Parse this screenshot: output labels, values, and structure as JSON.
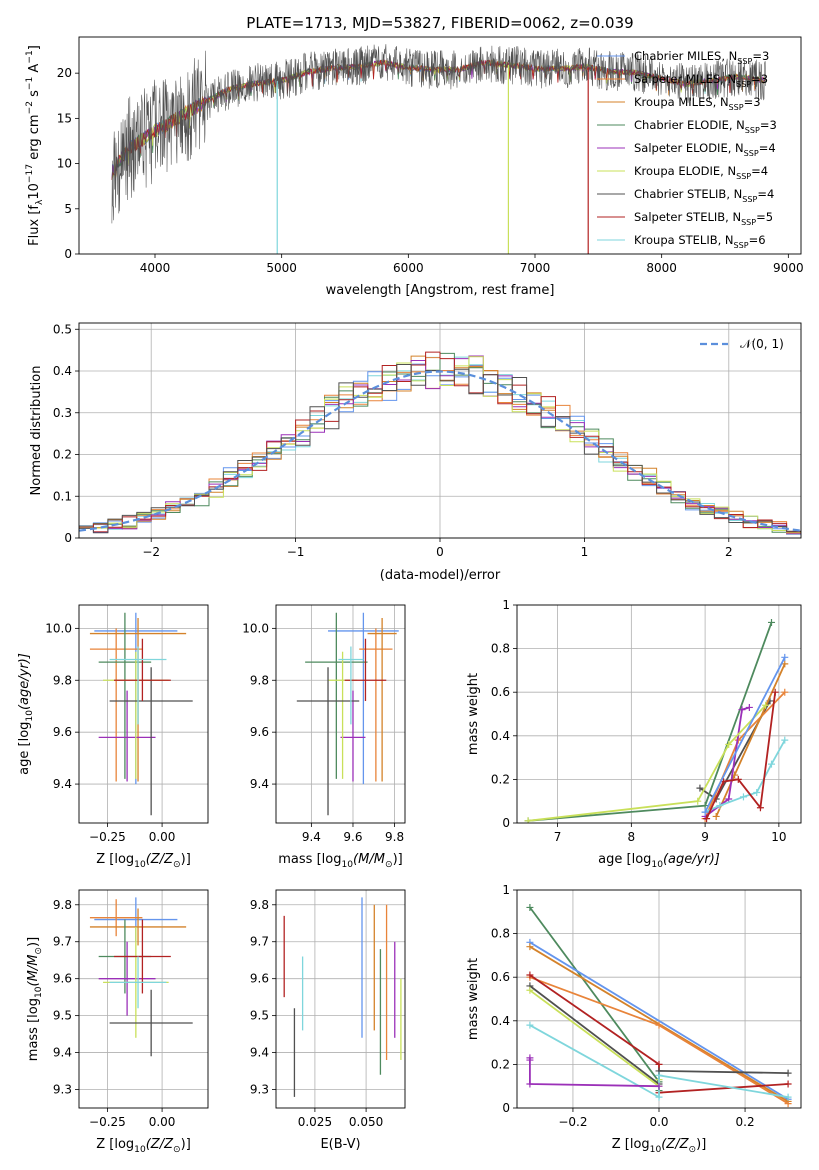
{
  "figure_title": "PLATE=1713, MJD=53827, FIBERID=0062, z=0.039",
  "colors": {
    "cm": "#6495ed",
    "sm": "#e8843a",
    "km": "#d4822a",
    "ce": "#4e8a5e",
    "se": "#9b30b8",
    "ke": "#c9e05a",
    "cs": "#505050",
    "ss": "#b22222",
    "ks": "#7fd6dc"
  },
  "legend": {
    "spectrum": [
      {
        "key": "cm",
        "label": "Chabrier MILES, N",
        "sub": "SSP",
        "tail": "=3"
      },
      {
        "key": "sm",
        "label": "Salpeter MILES, N",
        "sub": "SSP",
        "tail": "=3"
      },
      {
        "key": "km",
        "label": "Kroupa MILES, N",
        "sub": "SSP",
        "tail": "=3"
      },
      {
        "key": "ce",
        "label": "Chabrier ELODIE, N",
        "sub": "SSP",
        "tail": "=3"
      },
      {
        "key": "se",
        "label": "Salpeter ELODIE, N",
        "sub": "SSP",
        "tail": "=4"
      },
      {
        "key": "ke",
        "label": "Kroupa ELODIE, N",
        "sub": "SSP",
        "tail": "=4"
      },
      {
        "key": "cs",
        "label": "Chabrier STELIB, N",
        "sub": "SSP",
        "tail": "=4"
      },
      {
        "key": "ss",
        "label": "Salpeter STELIB, N",
        "sub": "SSP",
        "tail": "=5"
      },
      {
        "key": "ks",
        "label": "Kroupa STELIB, N",
        "sub": "SSP",
        "tail": "=6"
      }
    ],
    "normal": "𝒩(0, 1)"
  },
  "chart_data": [
    {
      "id": "spectrum",
      "type": "line",
      "xlabel": "wavelength [Angstrom, rest frame]",
      "ylabel_main": "Flux [f",
      "ylabel_sub": "λ",
      "ylabel_rest": "10",
      "ylabel_exp": "−17",
      "ylabel_units": " erg cm",
      "ylabel_units_exp": "−2",
      "ylabel_s": " s",
      "ylabel_s_exp": "−1",
      "ylabel_A": " A",
      "ylabel_A_exp": "−1",
      "ylabel_end": "]",
      "xlim": [
        3400,
        9100
      ],
      "ylim": [
        0,
        24
      ],
      "xticks": [
        4000,
        5000,
        6000,
        7000,
        8000,
        9000
      ],
      "yticks": [
        0,
        5,
        10,
        15,
        20
      ],
      "series": [
        {
          "key": "cs",
          "x": [
            3660,
            3800,
            4000,
            4200,
            4400,
            4600,
            4800,
            5000,
            5200,
            5400,
            5600,
            5800,
            6000,
            6200,
            6400,
            6600,
            6800,
            7000,
            7200,
            7400,
            7600,
            7800,
            8000,
            8200,
            8400,
            8600,
            8820
          ],
          "y": [
            9.0,
            11.8,
            13.6,
            15.2,
            16.9,
            18.3,
            18.9,
            19.2,
            20.1,
            20.6,
            20.7,
            21.2,
            20.6,
            20.4,
            20.4,
            21.2,
            20.9,
            20.5,
            20.5,
            20.7,
            20.2,
            20.1,
            19.4,
            18.8,
            19.2,
            19.6,
            19.2
          ]
        }
      ],
      "dropouts": [
        {
          "key": "ks",
          "x": 4965,
          "to": 0
        },
        {
          "key": "ke",
          "x": 6790,
          "to": 0
        },
        {
          "key": "ss",
          "x": 7420,
          "to": 0
        }
      ]
    },
    {
      "id": "residuals",
      "type": "step-histogram",
      "xlabel": "(data-model)/error",
      "ylabel": "Normed distribution",
      "xlim": [
        -2.5,
        2.5
      ],
      "ylim": [
        0,
        0.515
      ],
      "xticks": [
        -2,
        -1,
        0,
        1,
        2
      ],
      "xticklabels": [
        "−2",
        "−1",
        "0",
        "1",
        "2"
      ],
      "yticks": [
        0.0,
        0.1,
        0.2,
        0.3,
        0.4,
        0.5
      ],
      "bin_edges_start": -2.5,
      "bin_width": 0.1,
      "reference": {
        "type": "gaussian",
        "mean": 0,
        "sigma": 1
      }
    },
    {
      "id": "age_vs_Z",
      "type": "errorbar",
      "xlabel": "Z [log",
      "xlabel_sub": "10",
      "xlabel_tail": "(Z/Z",
      "xlabel_sun": "⊙",
      "xlabel_end": ")]",
      "ylabel": "age  [log",
      "ylabel_sub": "10",
      "ylabel_tail": "(age/yr)]",
      "xlim": [
        -0.38,
        0.21
      ],
      "ylim": [
        9.25,
        10.09
      ],
      "xticks": [
        -0.25,
        0.0
      ],
      "xticklabels": [
        "−0.25",
        "0.00"
      ],
      "yticks": [
        9.4,
        9.6,
        9.8,
        10.0
      ],
      "yticklabels": [
        "9.4",
        "9.6",
        "9.8",
        "10.0"
      ],
      "points": [
        {
          "key": "cm",
          "x": -0.12,
          "xerr": 0.19,
          "y": 9.99,
          "yerr_lo": 0.59,
          "yerr_hi": 0.07
        },
        {
          "key": "sm",
          "x": -0.21,
          "xerr": 0.12,
          "y": 9.92,
          "yerr_lo": 0.51,
          "yerr_hi": 0.08
        },
        {
          "key": "km",
          "x": -0.11,
          "xerr": 0.22,
          "y": 9.98,
          "yerr_lo": 0.57,
          "yerr_hi": 0.06
        },
        {
          "key": "ce",
          "x": -0.17,
          "xerr": 0.12,
          "y": 9.87,
          "yerr_lo": 0.45,
          "yerr_hi": 0.19
        },
        {
          "key": "se",
          "x": -0.16,
          "xerr": 0.13,
          "y": 9.58,
          "yerr_lo": 0.17,
          "yerr_hi": 0.18
        },
        {
          "key": "ke",
          "x": -0.12,
          "xerr": 0.15,
          "y": 9.8,
          "yerr_lo": 0.38,
          "yerr_hi": 0.11
        },
        {
          "key": "cs",
          "x": -0.05,
          "xerr": 0.19,
          "y": 9.72,
          "yerr_lo": 0.44,
          "yerr_hi": 0.13
        },
        {
          "key": "ss",
          "x": -0.09,
          "xerr": 0.13,
          "y": 9.8,
          "yerr_lo": 0.08,
          "yerr_hi": 0.16
        },
        {
          "key": "ks",
          "x": -0.11,
          "xerr": 0.13,
          "y": 9.88,
          "yerr_lo": 0.25,
          "yerr_hi": 0.05
        }
      ]
    },
    {
      "id": "age_vs_mass",
      "type": "errorbar",
      "xlabel": "mass [log",
      "xlabel_sub": "10",
      "xlabel_tail": "(M/M",
      "xlabel_sun": "⊙",
      "xlabel_end": ")]",
      "xlim": [
        9.23,
        9.85
      ],
      "ylim": [
        9.25,
        10.09
      ],
      "xticks": [
        9.4,
        9.6,
        9.8
      ],
      "xticklabels": [
        "9.4",
        "9.6",
        "9.8"
      ],
      "yticks": [
        9.4,
        9.6,
        9.8,
        10.0
      ],
      "yticklabels": [
        "9.4",
        "9.6",
        "9.8",
        "10.0"
      ],
      "points": [
        {
          "key": "cm",
          "x": 9.65,
          "xerr": 0.17,
          "y": 9.99,
          "yerr_lo": 0.59,
          "yerr_hi": 0.07
        },
        {
          "key": "sm",
          "x": 9.71,
          "xerr": 0.08,
          "y": 9.92,
          "yerr_lo": 0.51,
          "yerr_hi": 0.08
        },
        {
          "key": "km",
          "x": 9.74,
          "xerr": 0.07,
          "y": 9.98,
          "yerr_lo": 0.57,
          "yerr_hi": 0.06
        },
        {
          "key": "ce",
          "x": 9.52,
          "xerr": 0.15,
          "y": 9.87,
          "yerr_lo": 0.45,
          "yerr_hi": 0.19
        },
        {
          "key": "se",
          "x": 9.6,
          "xerr": 0.06,
          "y": 9.58,
          "yerr_lo": 0.17,
          "yerr_hi": 0.18
        },
        {
          "key": "ke",
          "x": 9.55,
          "xerr": 0.07,
          "y": 9.8,
          "yerr_lo": 0.38,
          "yerr_hi": 0.11
        },
        {
          "key": "cs",
          "x": 9.48,
          "xerr": 0.15,
          "y": 9.72,
          "yerr_lo": 0.44,
          "yerr_hi": 0.13
        },
        {
          "key": "ss",
          "x": 9.66,
          "xerr": 0.1,
          "y": 9.8,
          "yerr_lo": 0.08,
          "yerr_hi": 0.16
        },
        {
          "key": "ks",
          "x": 9.59,
          "xerr": 0.06,
          "y": 9.88,
          "yerr_lo": 0.25,
          "yerr_hi": 0.05
        }
      ]
    },
    {
      "id": "weight_vs_age",
      "type": "line",
      "xlabel": "age  [log",
      "xlabel_sub": "10",
      "xlabel_tail": "(age/yr)]",
      "ylabel": "mass weight",
      "xlim": [
        6.45,
        10.3
      ],
      "ylim": [
        0,
        1
      ],
      "xticks": [
        7,
        8,
        9,
        10
      ],
      "yticks": [
        0.0,
        0.2,
        0.4,
        0.6,
        0.8,
        1.0
      ],
      "series": [
        {
          "key": "cs",
          "x": [
            8.93,
            9.15,
            9.88
          ],
          "y": [
            0.16,
            0.11,
            0.56
          ]
        },
        {
          "key": "sm",
          "x": [
            9.0,
            9.45,
            10.08
          ],
          "y": [
            0.02,
            0.38,
            0.6
          ]
        },
        {
          "key": "km",
          "x": [
            9.15,
            9.4,
            10.08
          ],
          "y": [
            0.03,
            0.22,
            0.73
          ]
        },
        {
          "key": "ce",
          "x": [
            6.6,
            9.0,
            9.9
          ],
          "y": [
            0.01,
            0.08,
            0.92
          ]
        },
        {
          "key": "se",
          "x": [
            9.0,
            9.32,
            9.5,
            9.6
          ],
          "y": [
            0.03,
            0.11,
            0.52,
            0.53
          ]
        },
        {
          "key": "ke",
          "x": [
            6.6,
            8.9,
            9.32,
            9.82
          ],
          "y": [
            0.01,
            0.1,
            0.36,
            0.54
          ]
        },
        {
          "key": "ks",
          "x": [
            9.0,
            9.2,
            9.52,
            9.7,
            9.9,
            10.08
          ],
          "y": [
            0.05,
            0.08,
            0.12,
            0.14,
            0.27,
            0.38
          ]
        },
        {
          "key": "ss",
          "x": [
            9.02,
            9.25,
            9.45,
            9.75,
            9.95
          ],
          "y": [
            0.02,
            0.19,
            0.2,
            0.07,
            0.6
          ]
        },
        {
          "key": "cm",
          "x": [
            9.0,
            10.08
          ],
          "y": [
            0.05,
            0.76
          ]
        }
      ]
    },
    {
      "id": "mass_vs_Z",
      "type": "errorbar",
      "xlabel": "Z [log",
      "xlabel_sub": "10",
      "xlabel_tail": "(Z/Z",
      "xlabel_sun": "⊙",
      "xlabel_end": ")]",
      "ylabel": "mass [log",
      "ylabel_sub": "10",
      "ylabel_tail": "(M/M",
      "ylabel_sun": "⊙",
      "ylabel_end": ")]",
      "xlim": [
        -0.38,
        0.21
      ],
      "ylim": [
        9.25,
        9.84
      ],
      "xticks": [
        -0.25,
        0.0
      ],
      "xticklabels": [
        "−0.25",
        "0.00"
      ],
      "yticks": [
        9.3,
        9.4,
        9.5,
        9.6,
        9.7,
        9.8
      ],
      "yticklabels": [
        "9.3",
        "9.4",
        "9.5",
        "9.6",
        "9.7",
        "9.8"
      ],
      "points": [
        {
          "key": "cm",
          "x": -0.12,
          "xerr": 0.19,
          "y": 9.76,
          "yerr": 0.06
        },
        {
          "key": "sm",
          "x": -0.21,
          "xerr": 0.12,
          "y": 9.765,
          "yerr": 0.05
        },
        {
          "key": "km",
          "x": -0.11,
          "xerr": 0.22,
          "y": 9.74,
          "yerr": 0.05
        },
        {
          "key": "ce",
          "x": -0.17,
          "xerr": 0.12,
          "y": 9.66,
          "yerr": 0.1
        },
        {
          "key": "se",
          "x": -0.16,
          "xerr": 0.13,
          "y": 9.6,
          "yerr": 0.1
        },
        {
          "key": "ke",
          "x": -0.12,
          "xerr": 0.15,
          "y": 9.59,
          "yerr": 0.15
        },
        {
          "key": "cs",
          "x": -0.05,
          "xerr": 0.19,
          "y": 9.48,
          "yerr": 0.09
        },
        {
          "key": "ss",
          "x": -0.09,
          "xerr": 0.13,
          "y": 9.66,
          "yerr": 0.1
        },
        {
          "key": "ks",
          "x": -0.11,
          "xerr": 0.13,
          "y": 9.59,
          "yerr": 0.07
        }
      ]
    },
    {
      "id": "mass_vs_ebv",
      "type": "errorbar",
      "xlabel": "E(B-V)",
      "xlim": [
        0.006,
        0.069
      ],
      "ylim": [
        9.25,
        9.84
      ],
      "xticks": [
        0.025,
        0.05
      ],
      "xticklabels": [
        "0.025",
        "0.050"
      ],
      "yticks": [
        9.3,
        9.4,
        9.5,
        9.6,
        9.7,
        9.8
      ],
      "yticklabels": [
        "9.3",
        "9.4",
        "9.5",
        "9.6",
        "9.7",
        "9.8"
      ],
      "points": [
        {
          "key": "ss",
          "x": 0.01,
          "y": 9.66,
          "yerr": 0.11
        },
        {
          "key": "ks",
          "x": 0.019,
          "y": 9.56,
          "yerr": 0.1
        },
        {
          "key": "cs",
          "x": 0.015,
          "y": 9.4,
          "yerr": 0.12
        },
        {
          "key": "cm",
          "x": 0.048,
          "y": 9.63,
          "yerr": 0.19
        },
        {
          "key": "km",
          "x": 0.054,
          "y": 9.63,
          "yerr": 0.17
        },
        {
          "key": "ce",
          "x": 0.057,
          "y": 9.51,
          "yerr": 0.17
        },
        {
          "key": "sm",
          "x": 0.06,
          "y": 9.59,
          "yerr": 0.21
        },
        {
          "key": "se",
          "x": 0.064,
          "y": 9.57,
          "yerr": 0.13
        },
        {
          "key": "ke",
          "x": 0.067,
          "y": 9.49,
          "yerr": 0.11
        }
      ]
    },
    {
      "id": "weight_vs_Z",
      "type": "line",
      "xlabel": "Z [log",
      "xlabel_sub": "10",
      "xlabel_tail": "(Z/Z",
      "xlabel_sun": "⊙",
      "xlabel_end": ")]",
      "ylabel": "mass weight",
      "xlim": [
        -0.33,
        0.33
      ],
      "ylim": [
        0,
        1
      ],
      "xticks": [
        -0.2,
        0.0,
        0.2
      ],
      "xticklabels": [
        "−0.2",
        "0.0",
        "0.2"
      ],
      "yticks": [
        0.0,
        0.2,
        0.4,
        0.6,
        0.8,
        1.0
      ],
      "series": [
        {
          "key": "ce",
          "x": [
            -0.3,
            0.0,
            0.0
          ],
          "y": [
            0.92,
            0.12,
            0.08
          ]
        },
        {
          "key": "cm",
          "x": [
            -0.3,
            0.3
          ],
          "y": [
            0.76,
            0.04
          ]
        },
        {
          "key": "km",
          "x": [
            -0.3,
            0.3
          ],
          "y": [
            0.74,
            0.03
          ]
        },
        {
          "key": "sm",
          "x": [
            -0.3,
            0.0,
            0.3
          ],
          "y": [
            0.6,
            0.38,
            0.02
          ]
        },
        {
          "key": "ss",
          "x": [
            -0.3,
            0.0,
            0.0,
            0.3
          ],
          "y": [
            0.61,
            0.2,
            0.07,
            0.11
          ]
        },
        {
          "key": "cs",
          "x": [
            -0.3,
            0.0,
            0.0,
            0.3
          ],
          "y": [
            0.56,
            0.11,
            0.17,
            0.16
          ]
        },
        {
          "key": "ke",
          "x": [
            -0.3,
            0.0,
            0.0
          ],
          "y": [
            0.54,
            0.1,
            0.13
          ]
        },
        {
          "key": "ks",
          "x": [
            -0.3,
            0.0,
            0.0,
            0.3
          ],
          "y": [
            0.38,
            0.05,
            0.15,
            0.05
          ]
        },
        {
          "key": "se",
          "x": [
            -0.3,
            -0.3,
            -0.3,
            0.0
          ],
          "y": [
            0.23,
            0.22,
            0.11,
            0.1
          ]
        }
      ]
    }
  ]
}
